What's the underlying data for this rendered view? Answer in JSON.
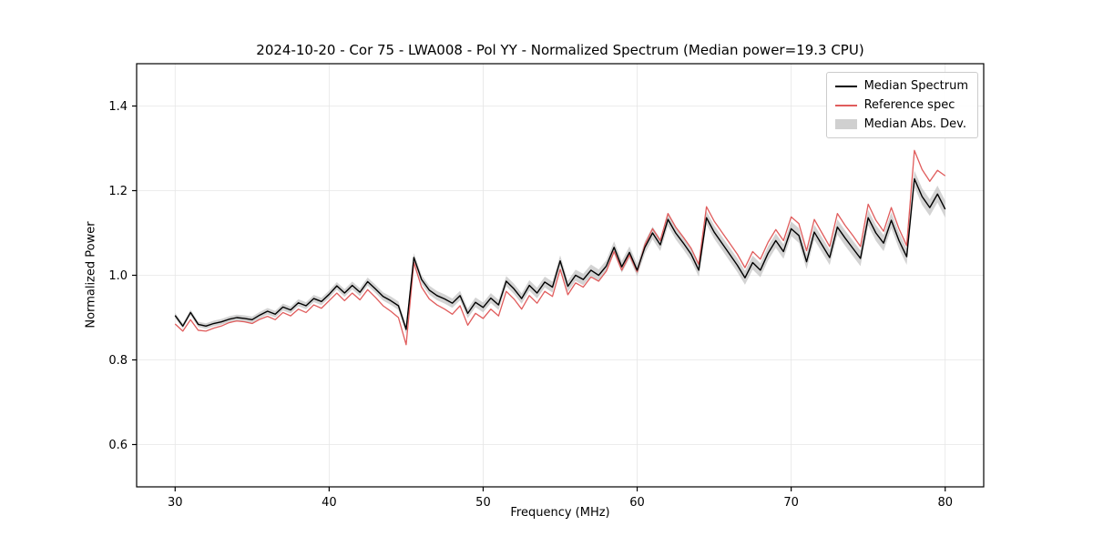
{
  "figure": {
    "title": "2024-10-20 - Cor 75 - LWA008 - Pol YY - Normalized Spectrum (Median power=19.3 CPU)"
  },
  "chart_data": {
    "type": "line",
    "title": "2024-10-20 - Cor 75 - LWA008 - Pol YY - Normalized Spectrum (Median power=19.3 CPU)",
    "xlabel": "Frequency (MHz)",
    "ylabel": "Normalized Power",
    "xlim": [
      27.5,
      82.5
    ],
    "ylim": [
      0.5,
      1.5
    ],
    "x_ticks": [
      30,
      40,
      50,
      60,
      70,
      80
    ],
    "x_tick_labels": [
      "30",
      "40",
      "50",
      "60",
      "70",
      "80"
    ],
    "y_ticks": [
      0.6,
      0.8,
      1.0,
      1.2,
      1.4
    ],
    "y_tick_labels": [
      "0.6",
      "0.8",
      "1.0",
      "1.2",
      "1.4"
    ],
    "grid": true,
    "colors": {
      "median": "#000000",
      "reference": "#e05c5c",
      "mad_band": "#bcbcbc",
      "grid": "#e6e6e6",
      "axes": "#000000"
    },
    "legend": {
      "position": "upper right",
      "entries": [
        {
          "label": "Median Spectrum",
          "type": "line",
          "color": "#000000"
        },
        {
          "label": "Reference spec",
          "type": "line",
          "color": "#e05c5c"
        },
        {
          "label": "Median Abs. Dev.",
          "type": "band",
          "color": "#bcbcbc"
        }
      ]
    },
    "x": [
      30,
      30.5,
      31,
      31.5,
      32,
      32.5,
      33,
      33.5,
      34,
      34.5,
      35,
      35.5,
      36,
      36.5,
      37,
      37.5,
      38,
      38.5,
      39,
      39.5,
      40,
      40.5,
      41,
      41.5,
      42,
      42.5,
      43,
      43.5,
      44,
      44.5,
      45,
      45.5,
      46,
      46.5,
      47,
      47.5,
      48,
      48.5,
      49,
      49.5,
      50,
      50.5,
      51,
      51.5,
      52,
      52.5,
      53,
      53.5,
      54,
      54.5,
      55,
      55.5,
      56,
      56.5,
      57,
      57.5,
      58,
      58.5,
      59,
      59.5,
      60,
      60.5,
      61,
      61.5,
      62,
      62.5,
      63,
      63.5,
      64,
      64.5,
      65,
      65.5,
      66,
      66.5,
      67,
      67.5,
      68,
      68.5,
      69,
      69.5,
      70,
      70.5,
      71,
      71.5,
      72,
      72.5,
      73,
      73.5,
      74,
      74.5,
      75,
      75.5,
      76,
      76.5,
      77,
      77.5,
      78,
      78.5,
      79,
      79.5,
      80
    ],
    "series": [
      {
        "name": "Median Spectrum",
        "values": [
          0.905,
          0.88,
          0.912,
          0.884,
          0.88,
          0.886,
          0.89,
          0.896,
          0.9,
          0.898,
          0.895,
          0.906,
          0.915,
          0.908,
          0.925,
          0.918,
          0.935,
          0.928,
          0.945,
          0.938,
          0.955,
          0.975,
          0.958,
          0.976,
          0.96,
          0.985,
          0.968,
          0.95,
          0.94,
          0.928,
          0.872,
          1.042,
          0.99,
          0.965,
          0.952,
          0.944,
          0.934,
          0.952,
          0.91,
          0.936,
          0.924,
          0.946,
          0.93,
          0.986,
          0.968,
          0.945,
          0.976,
          0.958,
          0.984,
          0.972,
          1.034,
          0.974,
          1.0,
          0.99,
          1.012,
          1.0,
          1.022,
          1.066,
          1.02,
          1.054,
          1.012,
          1.066,
          1.1,
          1.072,
          1.132,
          1.1,
          1.076,
          1.05,
          1.012,
          1.136,
          1.102,
          1.076,
          1.05,
          1.024,
          0.994,
          1.03,
          1.012,
          1.052,
          1.082,
          1.056,
          1.11,
          1.094,
          1.032,
          1.102,
          1.072,
          1.042,
          1.114,
          1.088,
          1.064,
          1.04,
          1.136,
          1.1,
          1.076,
          1.13,
          1.082,
          1.044,
          1.228,
          1.186,
          1.16,
          1.192,
          1.156
        ]
      },
      {
        "name": "Reference spec",
        "values": [
          0.885,
          0.868,
          0.895,
          0.87,
          0.868,
          0.875,
          0.88,
          0.888,
          0.892,
          0.89,
          0.886,
          0.896,
          0.903,
          0.895,
          0.912,
          0.904,
          0.92,
          0.912,
          0.93,
          0.922,
          0.94,
          0.958,
          0.94,
          0.958,
          0.942,
          0.966,
          0.948,
          0.928,
          0.915,
          0.9,
          0.836,
          1.03,
          0.972,
          0.944,
          0.93,
          0.92,
          0.908,
          0.928,
          0.882,
          0.91,
          0.898,
          0.92,
          0.904,
          0.962,
          0.944,
          0.92,
          0.952,
          0.934,
          0.962,
          0.95,
          1.014,
          0.954,
          0.982,
          0.972,
          0.996,
          0.986,
          1.01,
          1.056,
          1.012,
          1.048,
          1.008,
          1.072,
          1.11,
          1.082,
          1.146,
          1.114,
          1.09,
          1.064,
          1.026,
          1.162,
          1.128,
          1.102,
          1.076,
          1.05,
          1.018,
          1.056,
          1.038,
          1.078,
          1.108,
          1.082,
          1.138,
          1.122,
          1.058,
          1.132,
          1.1,
          1.068,
          1.146,
          1.118,
          1.094,
          1.068,
          1.168,
          1.13,
          1.104,
          1.16,
          1.11,
          1.07,
          1.295,
          1.25,
          1.222,
          1.248,
          1.235
        ]
      }
    ],
    "mad_halfwidth": [
      0.006,
      0.0061,
      0.0063,
      0.0064,
      0.0066,
      0.0067,
      0.0068,
      0.007,
      0.0071,
      0.0073,
      0.0074,
      0.0075,
      0.0077,
      0.0078,
      0.008,
      0.0081,
      0.0082,
      0.0084,
      0.0085,
      0.0087,
      0.0088,
      0.0089,
      0.0091,
      0.0092,
      0.0094,
      0.0095,
      0.0096,
      0.0098,
      0.0099,
      0.0101,
      0.0102,
      0.0103,
      0.0105,
      0.0106,
      0.0108,
      0.0109,
      0.011,
      0.0112,
      0.0113,
      0.0115,
      0.0116,
      0.0117,
      0.0119,
      0.012,
      0.0122,
      0.0123,
      0.0124,
      0.0126,
      0.0127,
      0.0129,
      0.013,
      0.0131,
      0.0133,
      0.0134,
      0.0136,
      0.0137,
      0.0138,
      0.014,
      0.0141,
      0.0143,
      0.0144,
      0.0145,
      0.0147,
      0.0148,
      0.015,
      0.0151,
      0.0152,
      0.0154,
      0.0155,
      0.0157,
      0.0158,
      0.0159,
      0.0161,
      0.0162,
      0.0164,
      0.0165,
      0.0166,
      0.0168,
      0.0169,
      0.0171,
      0.0172,
      0.0173,
      0.0175,
      0.0176,
      0.0178,
      0.0179,
      0.018,
      0.0182,
      0.0183,
      0.0185,
      0.0186,
      0.0187,
      0.0189,
      0.019,
      0.0192,
      0.0193,
      0.0194,
      0.0196,
      0.0197,
      0.0199,
      0.02
    ]
  }
}
